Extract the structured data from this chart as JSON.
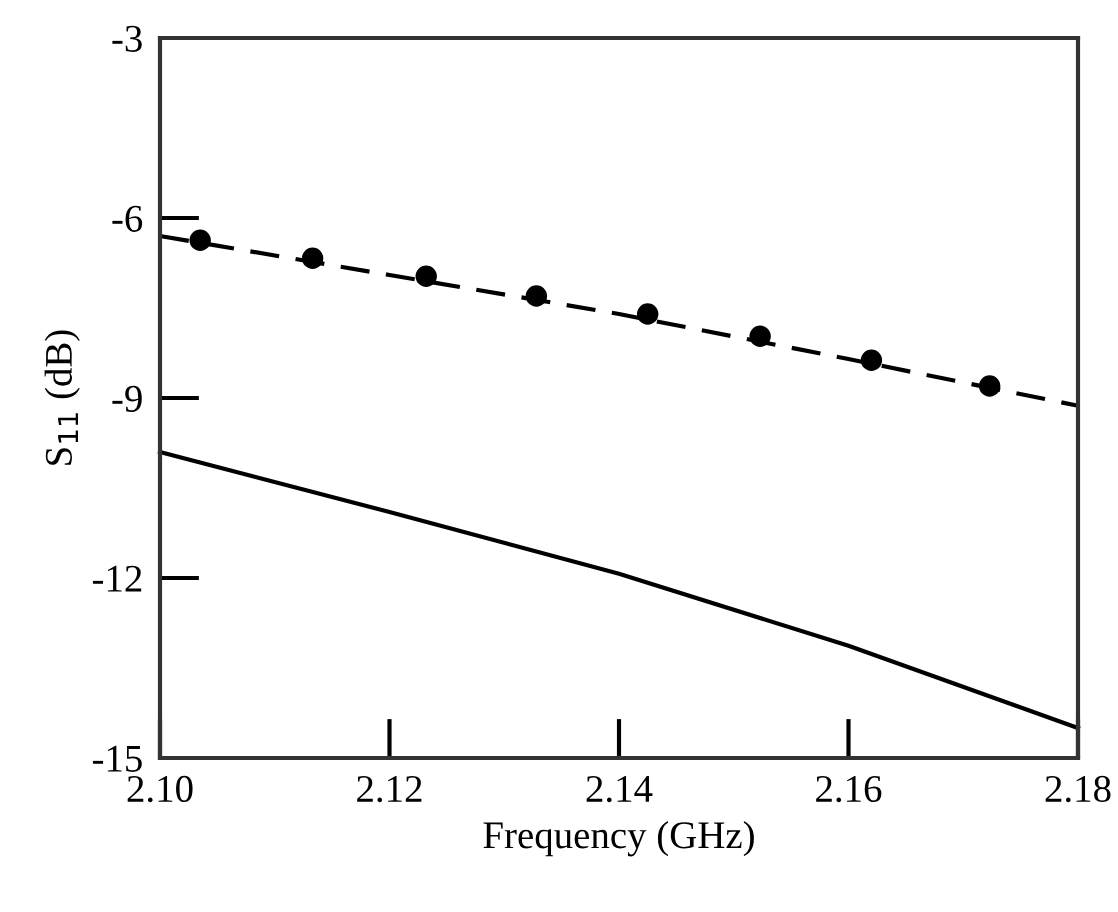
{
  "chart_data": {
    "type": "line",
    "xlabel": "Frequency (GHz)",
    "ylabel": "S$_{11}$ (dB)",
    "xlim": [
      2.1,
      2.18
    ],
    "ylim": [
      -15,
      -3
    ],
    "xticks": [
      {
        "value": 2.1,
        "label": "2.10"
      },
      {
        "value": 2.12,
        "label": "2.12"
      },
      {
        "value": 2.14,
        "label": "2.14"
      },
      {
        "value": 2.16,
        "label": "2.16"
      },
      {
        "value": 2.18,
        "label": "2.18"
      }
    ],
    "yticks": [
      -15,
      -12,
      -9,
      -6,
      -3
    ],
    "grid": false,
    "legend": false,
    "series": [
      {
        "color": "#000000",
        "line_style": "dashed",
        "marker": "none",
        "x": [
          2.1,
          2.12,
          2.14,
          2.16,
          2.18
        ],
        "values": [
          -6.3,
          -6.95,
          -7.6,
          -8.35,
          -9.13
        ]
      },
      {
        "type": "scatter",
        "color": "#000000",
        "marker": "circle",
        "x": [
          2.1035,
          2.1133,
          2.1232,
          2.1328,
          2.1425,
          2.1523,
          2.162,
          2.1723
        ],
        "values": [
          -6.37,
          -6.67,
          -6.97,
          -7.3,
          -7.6,
          -7.97,
          -8.37,
          -8.8
        ]
      },
      {
        "color": "#000000",
        "line_style": "solid",
        "marker": "none",
        "x": [
          2.1,
          2.12,
          2.14,
          2.16,
          2.18
        ],
        "values": [
          -9.9,
          -10.9,
          -11.93,
          -13.13,
          -14.5
        ]
      }
    ]
  }
}
